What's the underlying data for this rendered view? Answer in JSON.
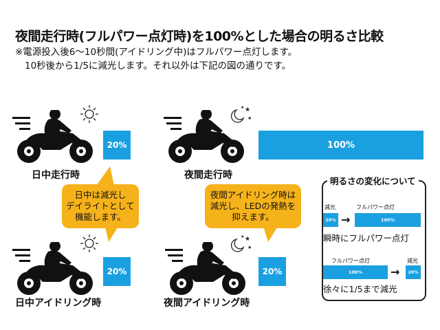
{
  "title": "夜間走行時(フルパワー点灯時)を100%とした場合の明るさ比較",
  "notes": [
    "※電源投入後6〜10秒間(アイドリング中)はフルパワー点灯します。",
    "10秒後から1/5に減光します。それ以外は下記の図の通りです。"
  ],
  "scenes": {
    "day_riding": {
      "label": "日中走行時",
      "value": "20%",
      "fraction": 0.2
    },
    "night_riding": {
      "label": "夜間走行時",
      "value": "100%",
      "fraction": 1.0
    },
    "day_idling": {
      "label": "日中アイドリング時",
      "value": "20%",
      "fraction": 0.2
    },
    "night_idling": {
      "label": "夜間アイドリング時",
      "value": "20%",
      "fraction": 0.2
    }
  },
  "bubbles": {
    "day": [
      "日中は減光し",
      "デイライトとして",
      "機能します。"
    ],
    "night": [
      "夜間アイドリング時は",
      "減光し、LEDの発熱を",
      "抑えます。"
    ]
  },
  "legend": {
    "title": "明るさの変化について",
    "instant": {
      "from_label": "減光",
      "to_label": "フルパワー点灯",
      "from_value": "20%",
      "to_value": "100%",
      "caption": "瞬時にフルパワー点灯"
    },
    "gradual": {
      "from_label": "フルパワー点灯",
      "to_label": "減光",
      "from_value": "100%",
      "to_value": "20%",
      "caption": "徐々に1/5まで減光"
    }
  },
  "colors": {
    "bar": "#1aa0e0",
    "bubble": "#f6b21a"
  }
}
